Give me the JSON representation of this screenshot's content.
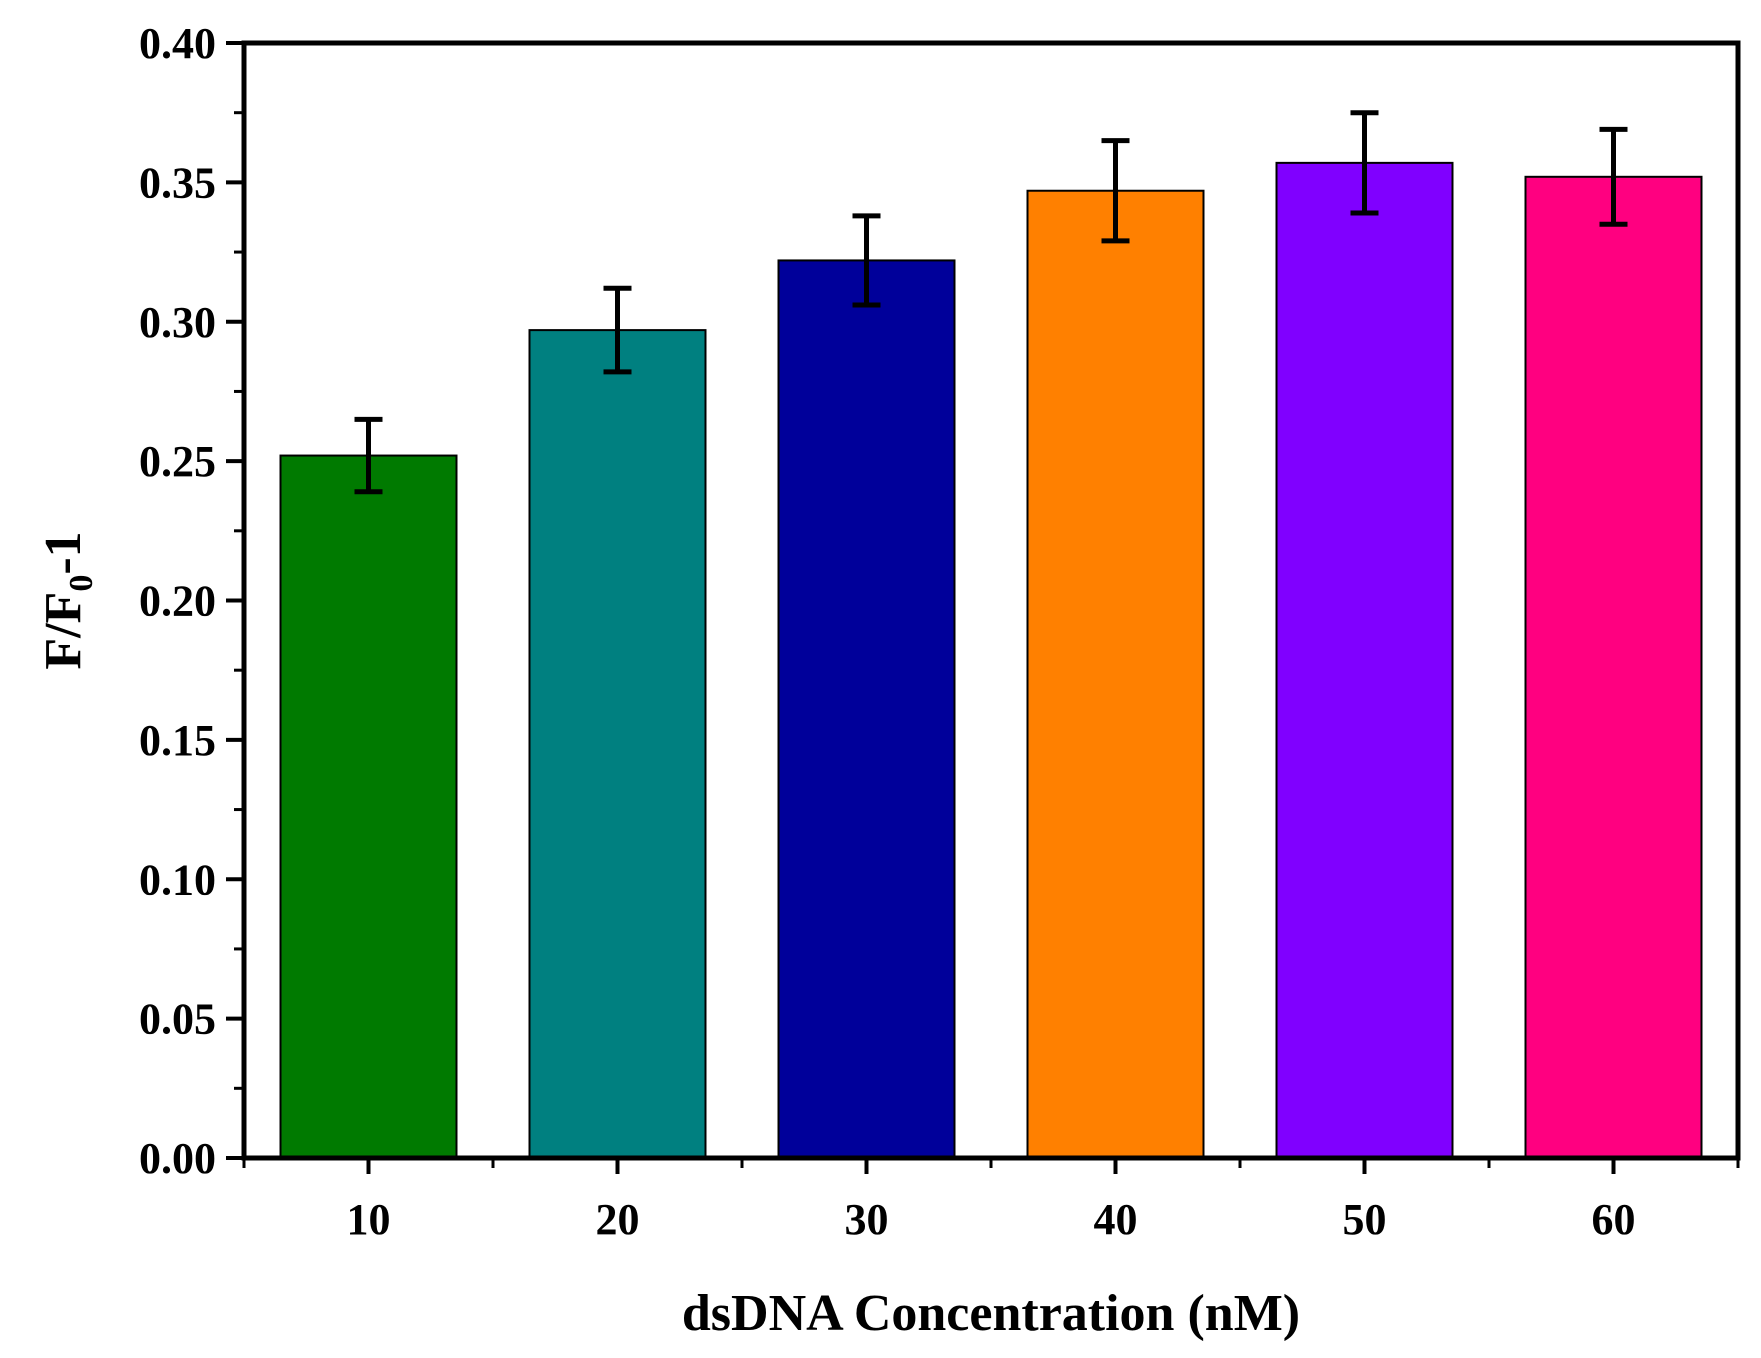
{
  "chart_data": {
    "type": "bar",
    "xlabel": "dsDNA Concentration (nM)",
    "ylabel": {
      "main": "F/F",
      "subscript": "0",
      "suffix": "-1"
    },
    "categories": [
      "10",
      "20",
      "30",
      "40",
      "50",
      "60"
    ],
    "values": [
      0.252,
      0.297,
      0.322,
      0.347,
      0.357,
      0.352
    ],
    "errors": [
      0.013,
      0.015,
      0.016,
      0.018,
      0.018,
      0.017
    ],
    "colors": [
      "#007A00",
      "#008080",
      "#00009A",
      "#FF8000",
      "#8000FF",
      "#FF0080"
    ],
    "ylim": [
      0,
      0.4
    ],
    "yticks": [
      "0.00",
      "0.05",
      "0.10",
      "0.15",
      "0.20",
      "0.25",
      "0.30",
      "0.35",
      "0.40"
    ],
    "grid": false
  }
}
